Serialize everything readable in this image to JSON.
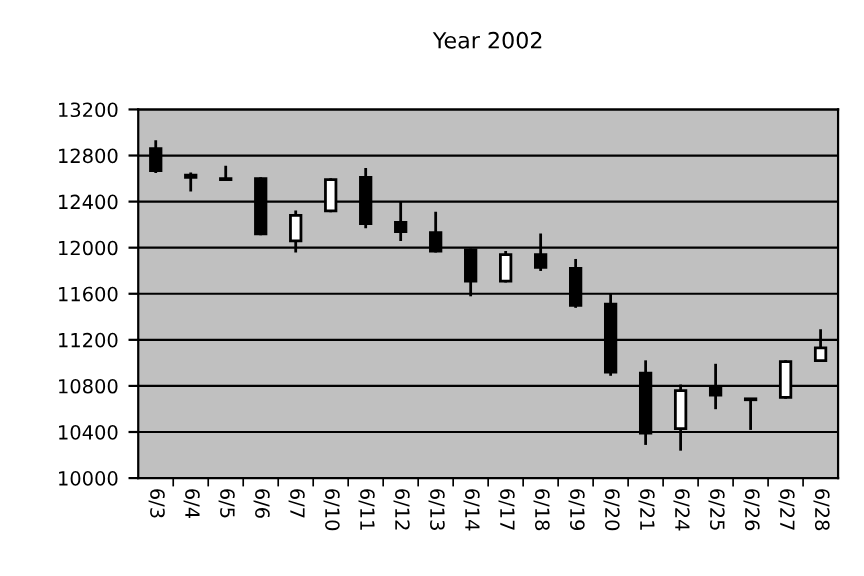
{
  "chart_data": {
    "type": "candlestick",
    "title": "Year 2002",
    "categories": [
      "6/3",
      "6/4",
      "6/5",
      "6/6",
      "6/7",
      "6/10",
      "6/11",
      "6/12",
      "6/13",
      "6/14",
      "6/17",
      "6/18",
      "6/19",
      "6/20",
      "6/21",
      "6/24",
      "6/25",
      "6/26",
      "6/27",
      "6/28"
    ],
    "ohlc": [
      [
        12860,
        12920,
        12660,
        12670
      ],
      [
        12630,
        12640,
        12500,
        12610
      ],
      [
        12600,
        12700,
        12590,
        12590
      ],
      [
        12600,
        12600,
        12120,
        12120
      ],
      [
        12060,
        12310,
        11970,
        12280
      ],
      [
        12320,
        12590,
        12320,
        12590
      ],
      [
        12610,
        12680,
        12180,
        12210
      ],
      [
        12220,
        12390,
        12070,
        12140
      ],
      [
        12130,
        12300,
        11970,
        11970
      ],
      [
        11980,
        11980,
        11590,
        11710
      ],
      [
        11710,
        11960,
        11710,
        11940
      ],
      [
        11940,
        12110,
        11810,
        11830
      ],
      [
        11820,
        11890,
        11490,
        11500
      ],
      [
        11510,
        11590,
        10900,
        10920
      ],
      [
        10910,
        11010,
        10300,
        10390
      ],
      [
        10430,
        10800,
        10250,
        10760
      ],
      [
        10790,
        10980,
        10610,
        10720
      ],
      [
        10680,
        10680,
        10430,
        10680
      ],
      [
        10700,
        11010,
        10700,
        11010
      ],
      [
        11020,
        11280,
        11020,
        11130
      ]
    ],
    "colors": [
      "#000000",
      "#000000",
      "#000000",
      "#000000",
      "#ffffff",
      "#ffffff",
      "#000000",
      "#000000",
      "#000000",
      "#000000",
      "#ffffff",
      "#000000",
      "#000000",
      "#000000",
      "#000000",
      "#ffffff",
      "#000000",
      "#000000",
      "#ffffff",
      "#ffffff"
    ],
    "ylim": [
      10000,
      13200
    ],
    "yticks": [
      10000,
      10400,
      10800,
      11200,
      11600,
      12000,
      12400,
      12800,
      13200
    ],
    "grid": "y"
  }
}
